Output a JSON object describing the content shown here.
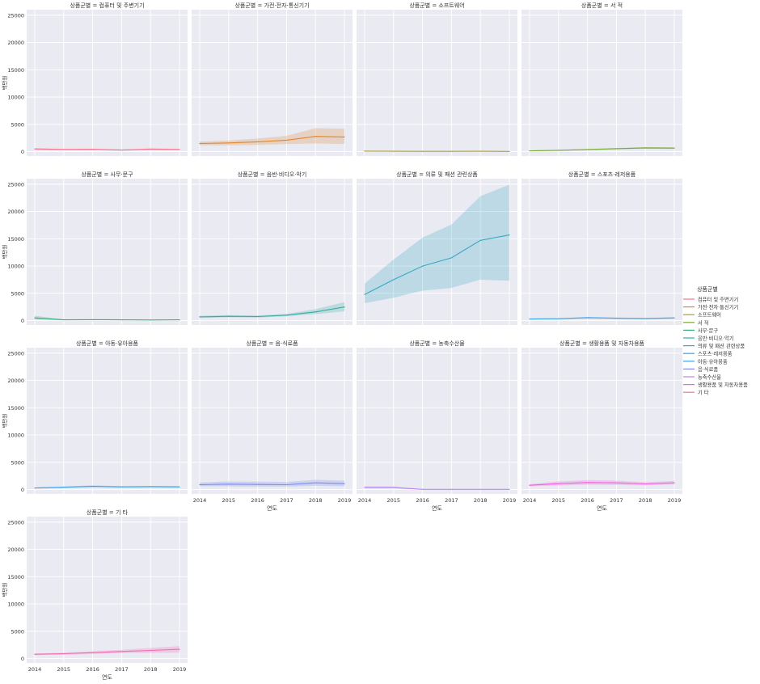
{
  "figure": {
    "facet_prefix": "상품군별 = ",
    "x_label": "연도",
    "y_label": "백만원",
    "legend_title": "상품군별"
  },
  "colors": {
    "panel_bg": "#eaeaf2",
    "grid": "#ffffff",
    "text": "#333333"
  },
  "chart_data": {
    "type": "line",
    "subtype": "faceted line with confidence bands",
    "x": [
      2014,
      2015,
      2016,
      2017,
      2018,
      2019
    ],
    "x_ticks": [
      "2014",
      "2015",
      "2016",
      "2017",
      "2018",
      "2019"
    ],
    "ylim": [
      -800,
      26000
    ],
    "y_ticks": [
      0,
      5000,
      10000,
      15000,
      20000,
      25000
    ],
    "y_tick_labels": [
      "0",
      "5000",
      "10000",
      "15000",
      "20000",
      "25000"
    ],
    "xlabel": "연도",
    "ylabel": "백만원",
    "grid": true,
    "legend_placement": "right",
    "series": [
      {
        "name": "컴퓨터 및 주변기기",
        "facet_title": "상품군별 = 컴퓨터 및 주변기기",
        "color": "#f77189",
        "values": [
          500,
          420,
          450,
          300,
          480,
          420
        ],
        "lower": [
          380,
          330,
          350,
          230,
          380,
          330
        ],
        "upper": [
          620,
          520,
          550,
          380,
          600,
          520
        ]
      },
      {
        "name": "가전·전자·통신기기",
        "facet_title": "상품군별 = 가전·전자·통신기기",
        "color": "#dc8932",
        "values": [
          1500,
          1600,
          1800,
          2100,
          2800,
          2700
        ],
        "lower": [
          1150,
          1150,
          1250,
          1400,
          1500,
          1400
        ],
        "upper": [
          1850,
          2050,
          2400,
          2900,
          4300,
          4200
        ]
      },
      {
        "name": "소프트웨어",
        "facet_title": "상품군별 = 소프트웨어",
        "color": "#ae9d31",
        "values": [
          100,
          80,
          60,
          60,
          70,
          50
        ],
        "lower": [
          70,
          55,
          40,
          40,
          45,
          30
        ],
        "upper": [
          130,
          105,
          80,
          80,
          95,
          70
        ]
      },
      {
        "name": "서 적",
        "facet_title": "상품군별 = 서 적",
        "color": "#77ab31",
        "values": [
          150,
          250,
          400,
          550,
          700,
          650
        ],
        "lower": [
          100,
          180,
          300,
          420,
          550,
          500
        ],
        "upper": [
          200,
          320,
          500,
          680,
          850,
          800
        ]
      },
      {
        "name": "사무·문구",
        "facet_title": "상품군별 = 사무·문구",
        "color": "#33b07a",
        "values": [
          500,
          150,
          180,
          150,
          120,
          150
        ],
        "lower": [
          200,
          100,
          120,
          100,
          80,
          100
        ],
        "upper": [
          900,
          200,
          240,
          200,
          160,
          200
        ]
      },
      {
        "name": "음반·비디오·악기",
        "facet_title": "상품군별 = 음반·비디오·악기",
        "color": "#36ada4",
        "values": [
          700,
          800,
          750,
          1000,
          1600,
          2500
        ],
        "lower": [
          500,
          600,
          550,
          800,
          1200,
          1700
        ],
        "upper": [
          900,
          1000,
          950,
          1250,
          2100,
          3400
        ]
      },
      {
        "name": "의류 및 패션 관련상품",
        "facet_title": "상품군별 = 의류 및 패션 관련상품",
        "color": "#38a9c5",
        "values": [
          4800,
          7500,
          10000,
          11500,
          14700,
          15700
        ],
        "lower": [
          3200,
          4200,
          5500,
          6000,
          7500,
          7300
        ],
        "upper": [
          6800,
          11200,
          15200,
          17600,
          22800,
          24900
        ]
      },
      {
        "name": "스포츠·레저용품",
        "facet_title": "상품군별 = 스포츠·레저용품",
        "color": "#3ba3ec",
        "values": [
          300,
          350,
          550,
          450,
          400,
          500
        ],
        "lower": [
          220,
          260,
          420,
          340,
          300,
          380
        ],
        "upper": [
          380,
          440,
          680,
          560,
          500,
          620
        ]
      },
      {
        "name": "아동·유아용품",
        "facet_title": "상품군별 = 아동·유아용품",
        "color": "#3ba3ec",
        "values": [
          300,
          450,
          600,
          500,
          550,
          500
        ],
        "lower": [
          220,
          330,
          420,
          380,
          420,
          380
        ],
        "upper": [
          380,
          570,
          800,
          620,
          680,
          620
        ]
      },
      {
        "name": "음·식료품",
        "facet_title": "상품군별 = 음·식료품",
        "color": "#7d8cf1",
        "values": [
          900,
          1000,
          950,
          900,
          1250,
          1100
        ],
        "lower": [
          600,
          600,
          550,
          550,
          700,
          600
        ],
        "upper": [
          1300,
          1500,
          1450,
          1400,
          1800,
          1650
        ]
      },
      {
        "name": "농축수산물",
        "facet_title": "상품군별 = 농축수산물",
        "color": "#bb83f4",
        "values": [
          400,
          400,
          50,
          50,
          40,
          40
        ],
        "lower": [
          250,
          250,
          20,
          20,
          15,
          15
        ],
        "upper": [
          600,
          600,
          80,
          80,
          70,
          70
        ]
      },
      {
        "name": "생활용품 및 자동차용품",
        "facet_title": "상품군별 = 생활용품 및 자동차용품",
        "color": "#f45fe0",
        "values": [
          800,
          1100,
          1300,
          1250,
          1050,
          1250
        ],
        "lower": [
          600,
          750,
          900,
          850,
          800,
          950
        ],
        "upper": [
          1000,
          1500,
          1750,
          1650,
          1350,
          1600
        ]
      },
      {
        "name": "기 타",
        "facet_title": "상품군별 = 기 타",
        "color": "#f56ab4",
        "values": [
          800,
          900,
          1100,
          1300,
          1500,
          1700
        ],
        "lower": [
          650,
          700,
          850,
          1000,
          1050,
          1100
        ],
        "upper": [
          950,
          1100,
          1350,
          1600,
          1950,
          2300
        ]
      }
    ]
  }
}
